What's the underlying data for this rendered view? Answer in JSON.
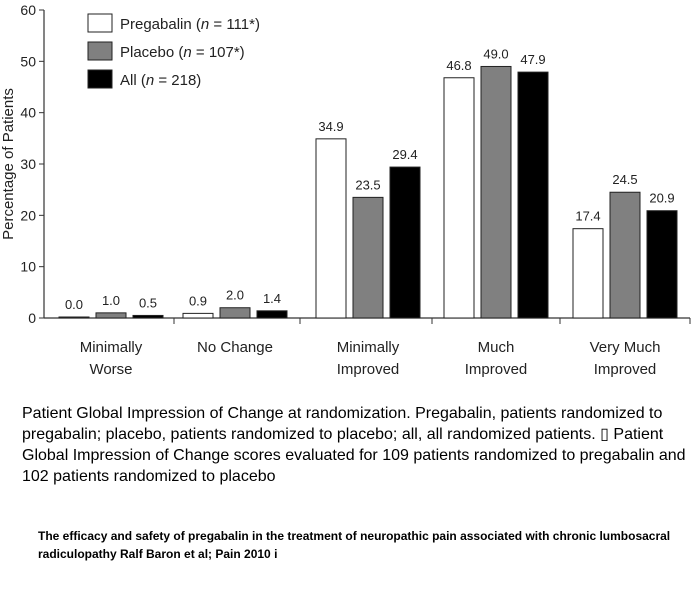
{
  "chart_data": {
    "type": "bar",
    "ylabel": "Percentage of Patients",
    "ylim": [
      0,
      60
    ],
    "yticks": [
      0,
      10,
      20,
      30,
      40,
      50,
      60
    ],
    "grid": false,
    "legend_position": "top-left",
    "categories": [
      [
        "Minimally",
        "Worse"
      ],
      [
        "No  Change"
      ],
      [
        "Minimally",
        "Improved"
      ],
      [
        "Much",
        "Improved"
      ],
      [
        "Very Much",
        "Improved"
      ]
    ],
    "series": [
      {
        "name_parts": [
          "Pregabalin (",
          "n",
          " = 111*)"
        ],
        "color": "#ffffff",
        "values": [
          0.0,
          0.9,
          34.9,
          46.8,
          17.4
        ],
        "labels": [
          "0.0",
          "0.9",
          "34.9",
          "46.8",
          "17.4"
        ]
      },
      {
        "name_parts": [
          "Placebo (",
          "n",
          " = 107*)"
        ],
        "color": "#808080",
        "values": [
          1.0,
          2.0,
          23.5,
          49.0,
          24.5
        ],
        "labels": [
          "1.0",
          "2.0",
          "23.5",
          "49.0",
          "24.5"
        ]
      },
      {
        "name_parts": [
          "All (",
          "n",
          " = 218)"
        ],
        "color": "#000000",
        "values": [
          0.5,
          1.4,
          29.4,
          47.9,
          20.9
        ],
        "labels": [
          "0.5",
          "1.4",
          "29.4",
          "47.9",
          "20.9"
        ]
      }
    ]
  },
  "caption": "Patient Global Impression of Change at randomization. Pregabalin, patients randomized to pregabalin; placebo, patients randomized to placebo; all, all randomized patients. ▯ Patient Global Impression of Change scores evaluated for 109 patients randomized to pregabalin and 102 patients randomized to placebo",
  "citation": "The efficacy and safety of pregabalin in the treatment of neuropathic pain associated with chronic lumbosacral radiculopathy Ralf Baron et al; Pain 2010 i"
}
